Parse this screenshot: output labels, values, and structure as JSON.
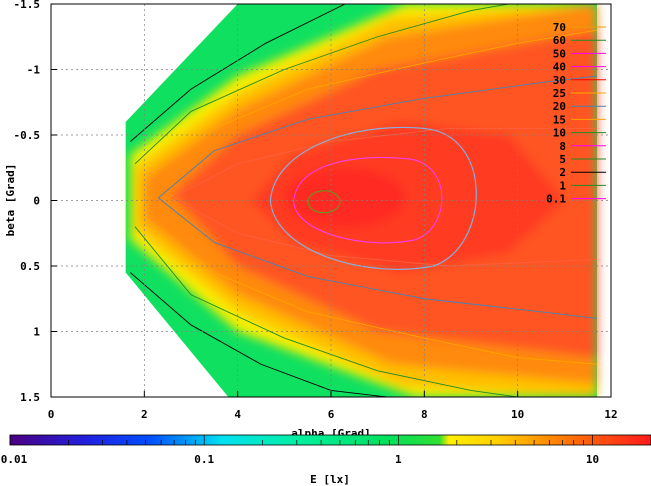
{
  "chart_data": {
    "type": "heatmap",
    "xlabel": "alpha [Grad]",
    "ylabel": "beta [Grad]",
    "xlim": [
      0,
      12
    ],
    "ylim": [
      1.5,
      -1.5
    ],
    "x_ticks": [
      "0",
      "2",
      "4",
      "6",
      "8",
      "10",
      "12"
    ],
    "y_ticks": [
      "-1.5",
      "-1",
      "-0.5",
      "0",
      "0.5",
      "1",
      "1.5"
    ],
    "grid": true,
    "colorbar": {
      "label": "E [lx]",
      "scale": "log",
      "range": [
        0.01,
        20
      ],
      "ticks": [
        "0.01",
        "0.1",
        "1",
        "10"
      ]
    },
    "contour_legend": {
      "placement": "top-right",
      "levels": [
        {
          "label": "70",
          "color": "#e8a000"
        },
        {
          "label": "60",
          "color": "#228b22"
        },
        {
          "label": "50",
          "color": "#ff00ff"
        },
        {
          "label": "40",
          "color": "#ff00ff"
        },
        {
          "label": "30",
          "color": "#ff0000"
        },
        {
          "label": "25",
          "color": "#ffa500"
        },
        {
          "label": "20",
          "color": "#4682b4"
        },
        {
          "label": "15",
          "color": "#ffa500"
        },
        {
          "label": "10",
          "color": "#228b22"
        },
        {
          "label": "8",
          "color": "#ff00ff"
        },
        {
          "label": "5",
          "color": "#228b22"
        },
        {
          "label": "2",
          "color": "#000000"
        },
        {
          "label": "1",
          "color": "#228b22"
        },
        {
          "label": "0.1",
          "color": "#ff00ff"
        }
      ]
    },
    "field": {
      "peak_alpha": 6.0,
      "peak_beta": 0.0,
      "peak_value": 14,
      "domain_alpha": [
        1.6,
        11.7
      ]
    }
  }
}
